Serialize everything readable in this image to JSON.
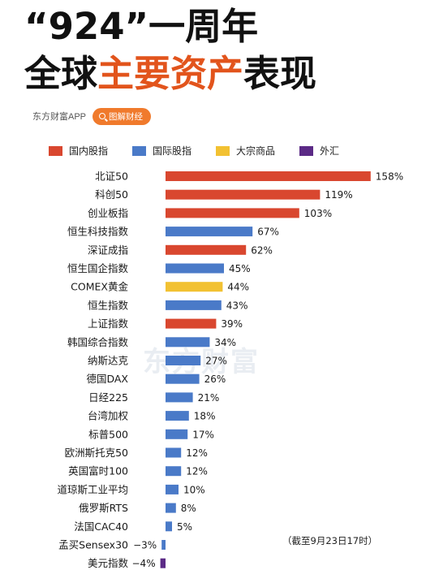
{
  "title": {
    "line1": "“924”一周年",
    "line2_prefix": "全球",
    "line2_highlight": "主要资产",
    "line2_suffix": "表现"
  },
  "brand": {
    "name": "东方财富APP",
    "button_label": "图解财经",
    "watermark": "东方财富"
  },
  "legend": [
    {
      "label": "国内股指",
      "color": "#d9472f"
    },
    {
      "label": "国际股指",
      "color": "#4a7ac8"
    },
    {
      "label": "大宗商品",
      "color": "#f2c132"
    },
    {
      "label": "外汇",
      "color": "#5b2a86"
    }
  ],
  "note": "（截至9月23日17时）",
  "chart_data": {
    "type": "bar",
    "orientation": "horizontal",
    "value_unit": "%",
    "categories": [
      "北证50",
      "科创50",
      "创业板指",
      "恒生科技指数",
      "深证成指",
      "恒生国企指数",
      "COMEX黄金",
      "恒生指数",
      "上证指数",
      "韩国综合指数",
      "纳斯达克",
      "德国DAX",
      "日经225",
      "台湾加权",
      "标普500",
      "欧洲斯托克50",
      "英国富时100",
      "道琼斯工业平均",
      "俄罗斯RTS",
      "法国CAC40",
      "孟买Sensex30",
      "美元指数"
    ],
    "values": [
      158,
      119,
      103,
      67,
      62,
      45,
      44,
      43,
      39,
      34,
      27,
      26,
      21,
      18,
      17,
      12,
      12,
      10,
      8,
      5,
      -3,
      -4
    ],
    "value_labels": [
      "158%",
      "119%",
      "103%",
      "67%",
      "62%",
      "45%",
      "44%",
      "43%",
      "39%",
      "34%",
      "27%",
      "26%",
      "21%",
      "18%",
      "17%",
      "12%",
      "12%",
      "10%",
      "8%",
      "5%",
      "−3%",
      "−4%"
    ],
    "groups": [
      "国内股指",
      "国内股指",
      "国内股指",
      "国际股指",
      "国内股指",
      "国际股指",
      "大宗商品",
      "国际股指",
      "国内股指",
      "国际股指",
      "国际股指",
      "国际股指",
      "国际股指",
      "国际股指",
      "国际股指",
      "国际股指",
      "国际股指",
      "国际股指",
      "国际股指",
      "国际股指",
      "国际股指",
      "外汇"
    ],
    "xlim": [
      -4,
      158
    ]
  }
}
